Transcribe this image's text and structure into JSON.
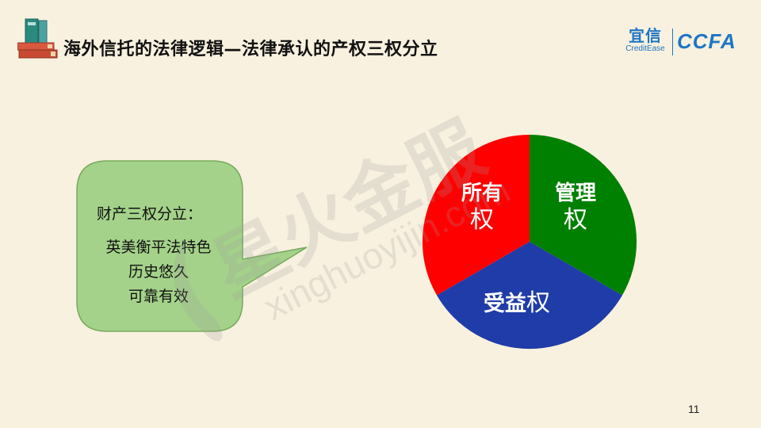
{
  "header": {
    "title": "海外信托的法律逻辑—法律承认的产权三权分立"
  },
  "logos": {
    "yixin_cn": "宜信",
    "yixin_en": "CreditEase",
    "ccfa": "CCFA"
  },
  "callout": {
    "heading": "财产三权分立：",
    "lines": [
      "英美衡平法特色",
      "历史悠久",
      "可靠有效"
    ],
    "fill_color": "#a4d28a",
    "border_color": "#78a95e"
  },
  "pie": {
    "segments": [
      {
        "line1": "所有",
        "line2": "权",
        "color": "#ff0000"
      },
      {
        "line1": "管理",
        "line2": "权",
        "color": "#008000"
      },
      {
        "line1": "受益",
        "line2": "权",
        "color": "#1f3ca8"
      }
    ]
  },
  "watermark": {
    "cn": "星火金服",
    "en": "xinghuoyijin.com"
  },
  "page_number": "11"
}
